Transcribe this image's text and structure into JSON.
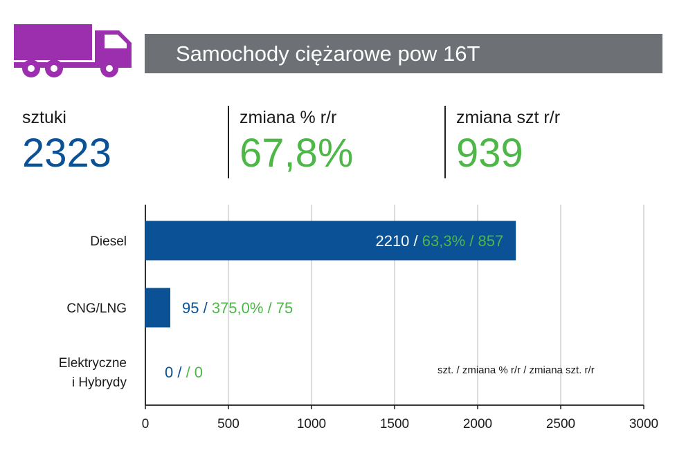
{
  "header": {
    "title": "Samochody ciężarowe pow 16T",
    "truck_icon": "truck-icon",
    "truck_color": "#9b2fae",
    "bar_color": "#6d7175"
  },
  "stats": [
    {
      "label": "sztuki",
      "value": "2323"
    },
    {
      "label": "zmiana % r/r",
      "value": "67,8%"
    },
    {
      "label": "zmiana szt r/r",
      "value": "939"
    }
  ],
  "colors": {
    "blue": "#0a5196",
    "green": "#4db848",
    "grid": "#c8c8c8"
  },
  "chart_data": {
    "type": "bar",
    "orientation": "horizontal",
    "categories": [
      "Diesel",
      "CNG/LNG",
      "Elektryczne i Hybrydy"
    ],
    "category_lines": [
      [
        "Diesel"
      ],
      [
        "CNG/LNG"
      ],
      [
        "Elektryczne",
        "i Hybrydy"
      ]
    ],
    "values": [
      2210,
      95,
      0
    ],
    "bar_extent": [
      2230,
      150,
      0
    ],
    "labels": [
      {
        "count": "2210 /",
        "change": "63,3% / 857"
      },
      {
        "count": "95 /",
        "change": "375,0% / 75"
      },
      {
        "count": "0 /",
        "change": "/ 0"
      }
    ],
    "xlim": [
      0,
      3000
    ],
    "xticks": [
      "0",
      "500",
      "1000",
      "1500",
      "2000",
      "2500",
      "3000"
    ],
    "grid": true,
    "legend_note": "szt. / zmiana % r/r / zmiana szt. r/r"
  }
}
